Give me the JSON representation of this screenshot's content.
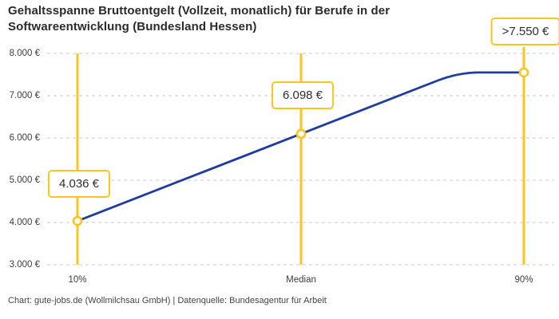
{
  "header": {
    "title": "Gehaltsspanne Bruttoentgelt (Vollzeit, monatlich) für Berufe in der Softwareentwicklung (Bundesland Hessen)"
  },
  "footer": {
    "credit": "Chart: gute-jobs.de (Wollmilchsau GmbH) | Datenquelle: Bundesagentur für Arbeit"
  },
  "colors": {
    "accent_yellow": "#FCC41C",
    "line_blue": "#1F3DA0",
    "grid": "#CBCBCB",
    "title_text": "#2B2B2B",
    "tick_text": "#3D3D3D",
    "label_text": "#2E2E2E",
    "background": "#FFFFFF"
  },
  "chart_data": {
    "type": "line",
    "title": "Gehaltsspanne Bruttoentgelt (Vollzeit, monatlich) für Berufe in der Softwareentwicklung (Bundesland Hessen)",
    "categories": [
      "10%",
      "Median",
      "90%"
    ],
    "values": [
      4036,
      6098,
      7550
    ],
    "point_labels": [
      "4.036 €",
      "6.098 €",
      ">7.550 €"
    ],
    "last_value_capped": true,
    "ylim": [
      3000,
      8000
    ],
    "yticks": [
      {
        "value": 8000,
        "label": "8.000 €"
      },
      {
        "value": 7000,
        "label": "7.000 €"
      },
      {
        "value": 6000,
        "label": "6.000 €"
      },
      {
        "value": 5000,
        "label": "5.000 €"
      },
      {
        "value": 4000,
        "label": "4.000 €"
      },
      {
        "value": 3000,
        "label": "3.000 €"
      }
    ],
    "xlabel": "",
    "ylabel": "",
    "grid": "horizontal-dashed",
    "legend": "none",
    "marker_lines": "vertical-yellow-at-each-category"
  }
}
